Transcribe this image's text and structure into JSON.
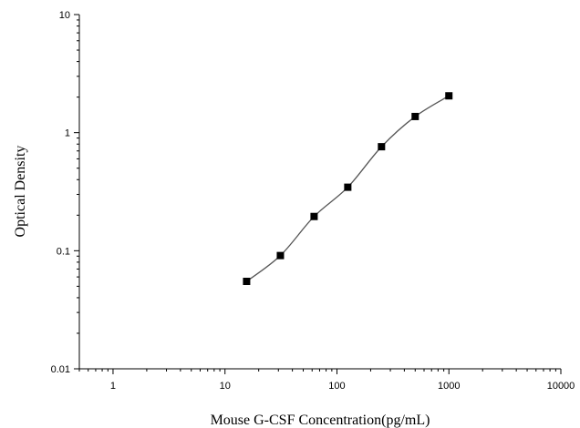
{
  "chart_data": {
    "type": "scatter",
    "xlabel": "Mouse G-CSF Concentration(pg/mL)",
    "ylabel": "Optical Density",
    "xscale": "log",
    "yscale": "log",
    "xlim": [
      0.5,
      10000
    ],
    "ylim": [
      0.01,
      10
    ],
    "xticks": [
      1,
      10,
      100,
      1000,
      10000
    ],
    "xtick_labels": [
      "1",
      "10",
      "100",
      "1000",
      "10000"
    ],
    "yticks": [
      0.01,
      0.1,
      1,
      10
    ],
    "ytick_labels": [
      "0.01",
      "0.1",
      "1",
      "10"
    ],
    "grid": false,
    "series": [
      {
        "x": [
          15.6,
          31.25,
          62.5,
          125,
          250,
          500,
          1000
        ],
        "y": [
          0.055,
          0.091,
          0.195,
          0.345,
          0.76,
          1.37,
          2.05
        ],
        "marker": "square",
        "fit_curve": true,
        "color": "#000000"
      }
    ]
  }
}
